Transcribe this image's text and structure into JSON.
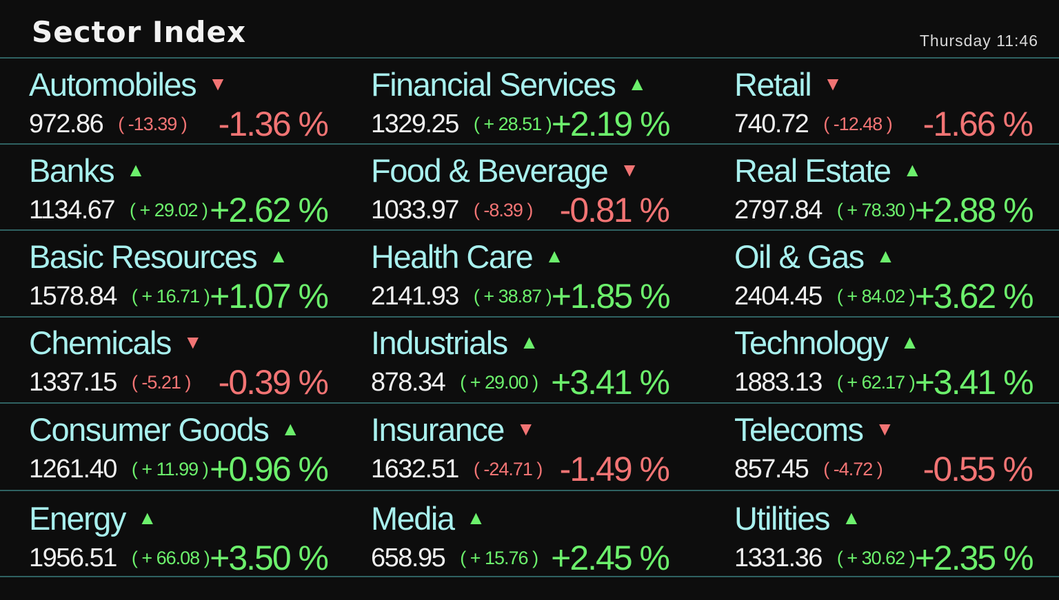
{
  "header": {
    "title": "Sector Index",
    "clock": "Thursday 11:46"
  },
  "colors": {
    "up": "#6cf06c",
    "down": "#f27474",
    "name": "#a8f0ee",
    "separator": "#2f6262"
  },
  "sectors": [
    {
      "name": "Automobiles",
      "dir": "down",
      "value": "972.86",
      "change": "( -13.39 )",
      "pct": "-1.36 %"
    },
    {
      "name": "Financial Services",
      "dir": "up",
      "value": "1329.25",
      "change": "( + 28.51 )",
      "pct": "+2.19 %"
    },
    {
      "name": "Retail",
      "dir": "down",
      "value": "740.72",
      "change": "( -12.48 )",
      "pct": "-1.66 %"
    },
    {
      "name": "Banks",
      "dir": "up",
      "value": "1134.67",
      "change": "( + 29.02 )",
      "pct": "+2.62 %"
    },
    {
      "name": "Food & Beverage",
      "dir": "down",
      "value": "1033.97",
      "change": "( -8.39 )",
      "pct": "-0.81 %"
    },
    {
      "name": "Real Estate",
      "dir": "up",
      "value": "2797.84",
      "change": "( + 78.30 )",
      "pct": "+2.88 %"
    },
    {
      "name": "Basic Resources",
      "dir": "up",
      "value": "1578.84",
      "change": "( + 16.71 )",
      "pct": "+1.07 %"
    },
    {
      "name": "Health Care",
      "dir": "up",
      "value": "2141.93",
      "change": "( + 38.87 )",
      "pct": "+1.85 %"
    },
    {
      "name": "Oil & Gas",
      "dir": "up",
      "value": "2404.45",
      "change": "( + 84.02 )",
      "pct": "+3.62 %"
    },
    {
      "name": "Chemicals",
      "dir": "down",
      "value": "1337.15",
      "change": "( -5.21 )",
      "pct": "-0.39 %"
    },
    {
      "name": "Industrials",
      "dir": "up",
      "value": "878.34",
      "change": "( + 29.00 )",
      "pct": "+3.41 %"
    },
    {
      "name": "Technology",
      "dir": "up",
      "value": "1883.13",
      "change": "( + 62.17 )",
      "pct": "+3.41 %"
    },
    {
      "name": "Consumer Goods",
      "dir": "up",
      "value": "1261.40",
      "change": "( + 11.99 )",
      "pct": "+0.96 %"
    },
    {
      "name": "Insurance",
      "dir": "down",
      "value": "1632.51",
      "change": "( -24.71 )",
      "pct": "-1.49 %"
    },
    {
      "name": "Telecoms",
      "dir": "down",
      "value": "857.45",
      "change": "( -4.72 )",
      "pct": "-0.55 %"
    },
    {
      "name": "Energy",
      "dir": "up",
      "value": "1956.51",
      "change": "( + 66.08 )",
      "pct": "+3.50 %"
    },
    {
      "name": "Media",
      "dir": "up",
      "value": "658.95",
      "change": "( + 15.76 )",
      "pct": "+2.45 %"
    },
    {
      "name": "Utilities",
      "dir": "up",
      "value": "1331.36",
      "change": "( + 30.62 )",
      "pct": "+2.35 %"
    }
  ]
}
